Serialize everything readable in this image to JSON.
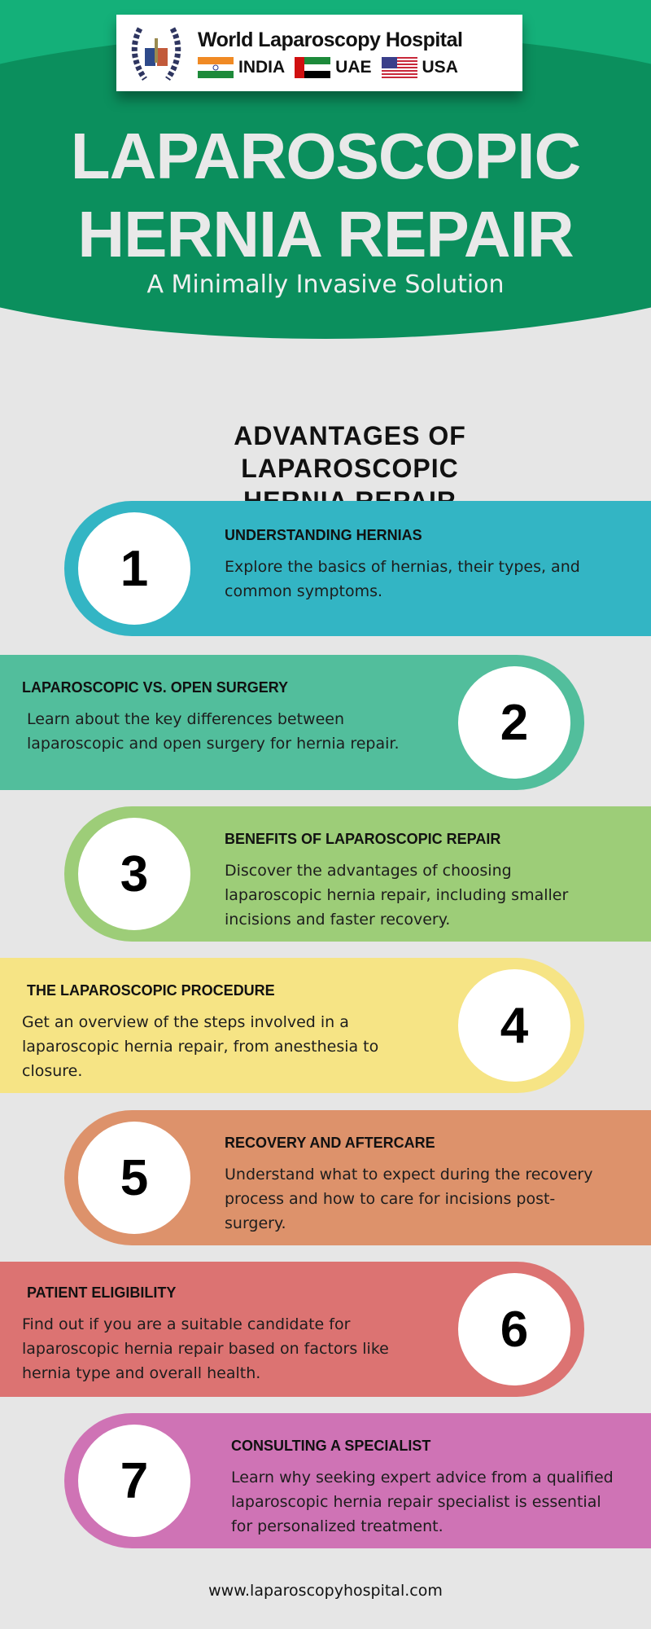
{
  "logo": {
    "name": "World Laparoscopy Hospital",
    "countries": [
      "INDIA",
      "UAE",
      "USA"
    ]
  },
  "header": {
    "title_line1": "LAPAROSCOPIC",
    "title_line2": "HERNIA REPAIR",
    "subtitle": "A Minimally Invasive Solution"
  },
  "section_heading": {
    "line1": "ADVANTAGES OF LAPAROSCOPIC",
    "line2": "HERNIA REPAIR"
  },
  "items": [
    {
      "number": "1",
      "title": "UNDERSTANDING HERNIAS",
      "description": "Explore the basics of hernias, their types, and common symptoms.",
      "color": "#33b5c4"
    },
    {
      "number": "2",
      "title": "LAPAROSCOPIC VS. OPEN SURGERY",
      "description": "Learn about the key differences between laparoscopic and open surgery for hernia repair.",
      "color": "#52be9c"
    },
    {
      "number": "3",
      "title": "BENEFITS OF LAPAROSCOPIC REPAIR",
      "description": "Discover the advantages of choosing laparoscopic hernia repair, including smaller incisions and faster recovery.",
      "color": "#9dcd78"
    },
    {
      "number": "4",
      "title": "THE LAPAROSCOPIC PROCEDURE",
      "description": "Get an overview of the steps involved in a laparoscopic hernia repair, from anesthesia to closure.",
      "color": "#f6e485"
    },
    {
      "number": "5",
      "title": "RECOVERY AND AFTERCARE",
      "description": "Understand what to expect during the recovery process and how to care for incisions post-surgery.",
      "color": "#dd926b"
    },
    {
      "number": "6",
      "title": "PATIENT ELIGIBILITY",
      "description": "Find out if you are a suitable candidate for laparoscopic hernia repair based on factors like hernia type and overall health.",
      "color": "#dc7372"
    },
    {
      "number": "7",
      "title": "CONSULTING A SPECIALIST",
      "description": "Learn why seeking expert advice from a qualified laparoscopic hernia repair specialist is essential for personalized treatment.",
      "color": "#cf73b5"
    }
  ],
  "footer": {
    "url": "www.laparoscopyhospital.com"
  }
}
